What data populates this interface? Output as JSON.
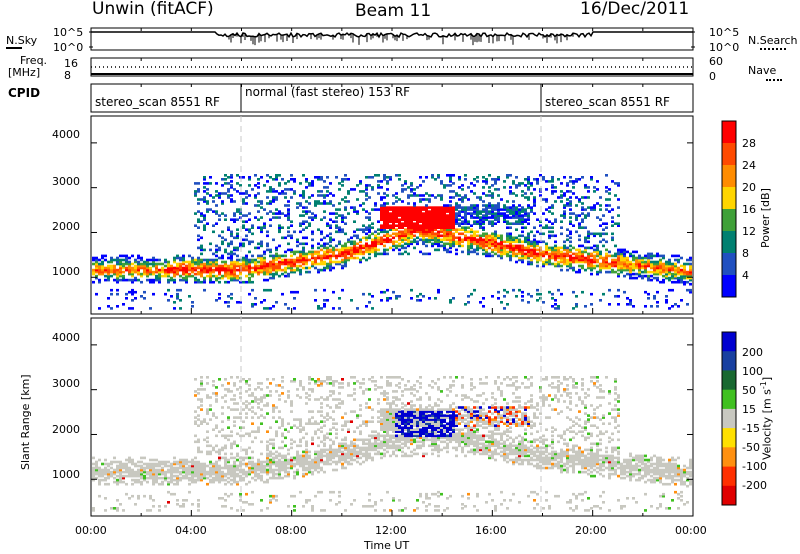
{
  "header": {
    "site": "Unwin (fitACF)",
    "beam": "Beam 11",
    "date": "16/Dec/2011"
  },
  "noise_panel": {
    "left_label": "N.Sky",
    "right_label": "N.Search",
    "left_ticks": [
      "10^5",
      "10^0"
    ],
    "right_ticks": [
      "10^5",
      "10^0"
    ]
  },
  "freq_panel": {
    "left_label_1": "Freq.",
    "left_label_2": "[MHz]",
    "right_label": "Nave",
    "left_ticks": [
      "16",
      "8"
    ],
    "right_ticks": [
      "60",
      "0"
    ]
  },
  "cpid": {
    "label": "CPID",
    "segments": [
      {
        "name": "stereo_scan 8551 RF",
        "start_hour": 0,
        "end_hour": 6
      },
      {
        "name": "normal (fast stereo) 153 RF",
        "start_hour": 6,
        "end_hour": 18
      },
      {
        "name": "stereo_scan 8551 RF",
        "start_hour": 18,
        "end_hour": 24
      }
    ]
  },
  "power_colorbar": {
    "title": "Power [dB]",
    "ticks": [
      "28",
      "24",
      "20",
      "16",
      "12",
      "8",
      "4"
    ],
    "colors": [
      "#ff0000",
      "#ff4a00",
      "#ff8c00",
      "#ffd500",
      "#3fa038",
      "#008070",
      "#2050c0",
      "#0000ff"
    ]
  },
  "velocity_colorbar": {
    "title": "Velocity [m s",
    "title_exp": "-1",
    "title_end": "]",
    "ticks": [
      "200",
      "100",
      "50",
      "15",
      "-15",
      "-50",
      "-100",
      "-200"
    ],
    "colors": [
      "#0000d0",
      "#1840a0",
      "#186830",
      "#40c020",
      "#c8c8c0",
      "#ffe000",
      "#ff9010",
      "#ff3000",
      "#e00000"
    ]
  },
  "chart_data": {
    "type": "heatmap",
    "x_axis": {
      "label": "Time UT",
      "ticks": [
        "00:00",
        "04:00",
        "08:00",
        "12:00",
        "16:00",
        "20:00",
        "00:00"
      ],
      "range_hours": [
        0,
        24
      ]
    },
    "y_axis": {
      "label": "Slant Range [km]",
      "ticks": [
        "1000",
        "2000",
        "3000",
        "4000"
      ],
      "range_km": [
        180,
        4600
      ]
    },
    "panels": [
      {
        "name": "Power",
        "units": "dB",
        "scale": [
          0,
          30
        ],
        "main_echo_band": [
          {
            "hour": 0,
            "range_km": 1150
          },
          {
            "hour": 6,
            "range_km": 1150
          },
          {
            "hour": 10,
            "range_km": 1500
          },
          {
            "hour": 13,
            "range_km": 2050
          },
          {
            "hour": 15,
            "range_km": 1850
          },
          {
            "hour": 18,
            "range_km": 1500
          },
          {
            "hour": 24,
            "range_km": 1100
          }
        ],
        "peak_power_region": {
          "hours": [
            11.5,
            14.5
          ],
          "range_km": [
            2100,
            2500
          ],
          "power_db": 28
        }
      },
      {
        "name": "Velocity",
        "units": "m s-1",
        "scale": [
          -250,
          250
        ],
        "dominant_value": 0,
        "positive_region": {
          "hours": [
            12,
            14.5
          ],
          "range_km": [
            1900,
            2500
          ],
          "velocity": 200
        }
      }
    ]
  }
}
